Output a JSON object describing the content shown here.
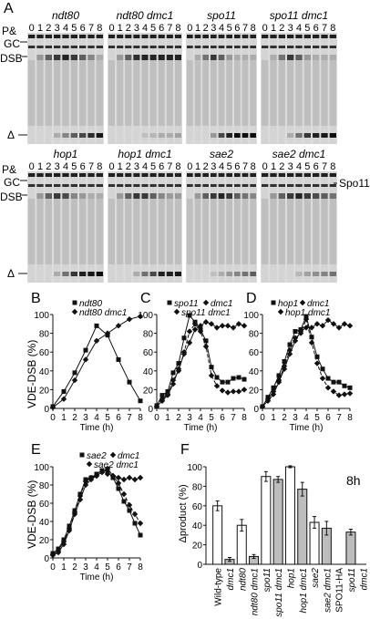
{
  "panel_letters": [
    "A",
    "B",
    "C",
    "D",
    "E",
    "F"
  ],
  "gel_row_labels": {
    "pgc_top": "P&",
    "pgc_bottom": "GC",
    "dsb": "DSB",
    "delta": "Δ",
    "spo11": "Spo11"
  },
  "lanes": [
    "0",
    "1",
    "2",
    "3",
    "4",
    "5",
    "6",
    "7",
    "8"
  ],
  "gels_row1": [
    {
      "title": "ndt80"
    },
    {
      "title": "ndt80 dmc1"
    },
    {
      "title": "spo11"
    },
    {
      "title": "spo11 dmc1"
    }
  ],
  "gels_row2": [
    {
      "title": "hop1"
    },
    {
      "title": "hop1 dmc1"
    },
    {
      "title": "sae2"
    },
    {
      "title": "sae2 dmc1"
    }
  ],
  "line_axes": {
    "ylabel": "VDE-DSB (%)",
    "xlabel": "Time (h)",
    "xticks": [
      "0",
      "1",
      "2",
      "3",
      "4",
      "5",
      "6",
      "7",
      "8"
    ],
    "yticks": [
      "0",
      "20",
      "40",
      "60",
      "80",
      "100"
    ]
  },
  "chart_data": [
    {
      "panel": "B",
      "type": "line",
      "ylabel": "VDE-DSB (%)",
      "xlabel": "Time (h)",
      "xlim": [
        0,
        8
      ],
      "ylim": [
        0,
        100
      ],
      "x": [
        0,
        1,
        2,
        3,
        4,
        5,
        6,
        7,
        8
      ],
      "series": [
        {
          "name": "ndt80",
          "marker": "square",
          "dash": "solid",
          "values": [
            2,
            18,
            38,
            62,
            88,
            78,
            52,
            28,
            8
          ]
        },
        {
          "name": "ndt80 dmc1",
          "marker": "diamond",
          "dash": "solid",
          "values": [
            1,
            10,
            30,
            52,
            72,
            80,
            88,
            95,
            98
          ]
        }
      ]
    },
    {
      "panel": "C",
      "type": "line",
      "ylabel": "VDE-DSB (%)",
      "xlabel": "Time (h)",
      "xlim": [
        0,
        8
      ],
      "ylim": [
        0,
        100
      ],
      "x": [
        0,
        0.5,
        1,
        1.5,
        2,
        2.5,
        3,
        3.5,
        4,
        4.5,
        5,
        5.5,
        6,
        6.5,
        7,
        7.5,
        8
      ],
      "series": [
        {
          "name": "spo11",
          "marker": "square",
          "dash": "solid",
          "values": [
            3,
            14,
            18,
            38,
            48,
            75,
            99,
            92,
            84,
            72,
            44,
            33,
            28,
            28,
            32,
            33,
            31
          ]
        },
        {
          "name": "spo11 dmc1",
          "marker": "diamond",
          "dash": "dashed",
          "values": [
            2,
            10,
            15,
            30,
            40,
            60,
            82,
            90,
            82,
            66,
            35,
            24,
            19,
            17,
            18,
            18,
            20
          ]
        },
        {
          "name": "dmc1",
          "marker": "diamond",
          "dash": "solid",
          "values": [
            2,
            8,
            14,
            26,
            42,
            58,
            70,
            84,
            88,
            92,
            90,
            86,
            88,
            88,
            86,
            90,
            88
          ]
        }
      ]
    },
    {
      "panel": "D",
      "type": "line",
      "ylabel": "VDE-DSB (%)",
      "xlabel": "Time (h)",
      "xlim": [
        0,
        8
      ],
      "ylim": [
        0,
        100
      ],
      "x": [
        0,
        0.5,
        1,
        1.5,
        2,
        2.5,
        3,
        3.5,
        4,
        4.5,
        5,
        5.5,
        6,
        6.5,
        7,
        7.5,
        8
      ],
      "series": [
        {
          "name": "hop1",
          "marker": "square",
          "dash": "solid",
          "values": [
            2,
            12,
            22,
            35,
            50,
            68,
            82,
            84,
            98,
            76,
            55,
            42,
            32,
            28,
            28,
            24,
            22
          ]
        },
        {
          "name": "hop1 dmc1",
          "marker": "diamond",
          "dash": "dashed",
          "values": [
            2,
            10,
            18,
            30,
            45,
            62,
            75,
            80,
            95,
            70,
            48,
            32,
            22,
            18,
            14,
            15,
            16
          ]
        },
        {
          "name": "dmc1",
          "marker": "diamond",
          "dash": "solid",
          "values": [
            2,
            8,
            15,
            28,
            42,
            58,
            72,
            82,
            86,
            86,
            90,
            88,
            94,
            90,
            86,
            90,
            88
          ]
        }
      ]
    },
    {
      "panel": "E",
      "type": "line",
      "ylabel": "VDE-DSB (%)",
      "xlabel": "Time (h)",
      "xlim": [
        0,
        8
      ],
      "ylim": [
        0,
        100
      ],
      "x": [
        0,
        0.5,
        1,
        1.5,
        2,
        2.5,
        3,
        3.5,
        4,
        4.5,
        5,
        5.5,
        6,
        6.5,
        7,
        7.5,
        8
      ],
      "series": [
        {
          "name": "sae2",
          "marker": "square",
          "dash": "solid",
          "values": [
            5,
            10,
            20,
            35,
            52,
            70,
            86,
            88,
            92,
            96,
            95,
            88,
            76,
            62,
            52,
            38,
            25
          ]
        },
        {
          "name": "sae2 dmc1",
          "marker": "diamond",
          "dash": "dashed",
          "values": [
            4,
            8,
            18,
            32,
            50,
            68,
            84,
            88,
            90,
            94,
            92,
            90,
            82,
            70,
            58,
            48,
            38
          ]
        },
        {
          "name": "dmc1",
          "marker": "diamond",
          "dash": "solid",
          "values": [
            3,
            6,
            15,
            30,
            48,
            64,
            80,
            86,
            90,
            94,
            98,
            90,
            88,
            86,
            88,
            86,
            88
          ]
        }
      ]
    },
    {
      "panel": "F",
      "type": "bar",
      "title": "8h",
      "ylabel": "Δproduct (%)",
      "ylim": [
        0,
        100
      ],
      "categories": [
        "Wild-type",
        "dmc1",
        "ndt80",
        "ndt80 dmc1",
        "spo11",
        "spo11 dmc1",
        "hop1",
        "hop1 dmc1",
        "sae2",
        "sae2 dmc1",
        "SPO11-HA",
        "spo11",
        "dmc1"
      ],
      "values": [
        60,
        5,
        40,
        8,
        90,
        87,
        100,
        77,
        43,
        37,
        null,
        33,
        null
      ],
      "errors": [
        5,
        2,
        6,
        2,
        5,
        3,
        1,
        7,
        6,
        7,
        null,
        3,
        null
      ],
      "fills": [
        "white",
        "gray",
        "white",
        "gray",
        "white",
        "gray",
        "white",
        "gray",
        "white",
        "gray",
        "none",
        "gray",
        "none"
      ],
      "yticks": [
        "0",
        "20",
        "40",
        "60",
        "80",
        "100"
      ]
    }
  ],
  "colors": {
    "ink": "#111111",
    "bar_gray": "#bdbdbd",
    "gel_bg": "#e8e8e8",
    "band": "#1a1a1a"
  }
}
